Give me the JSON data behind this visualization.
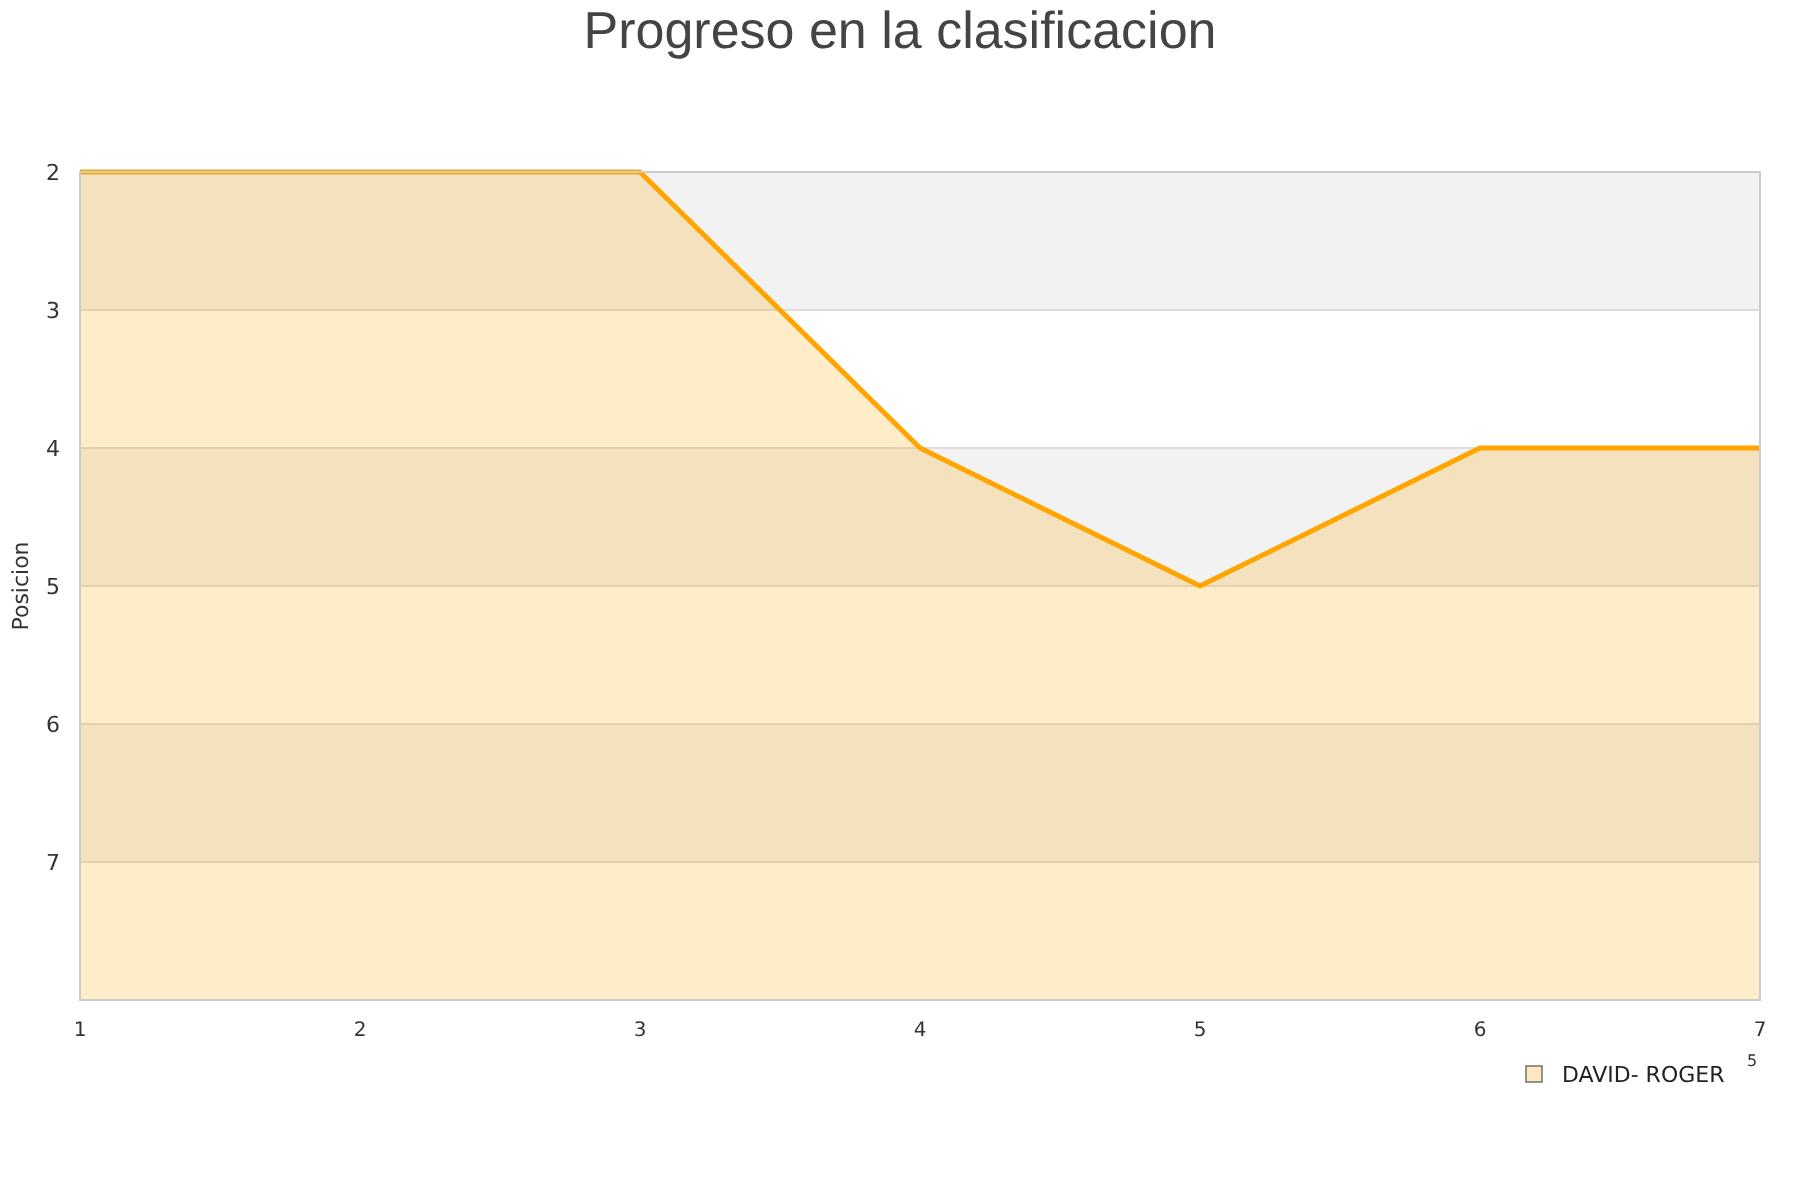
{
  "chart_data": {
    "type": "line",
    "title": "Progreso en la clasificacion",
    "ylabel": "Posicion",
    "x": [
      1,
      2,
      3,
      4,
      5,
      6,
      7
    ],
    "series": [
      {
        "name": "DAVID- ROGER",
        "color": "#ffa500",
        "values": [
          2,
          2,
          2,
          4,
          5,
          4,
          4
        ],
        "lower": [
          2,
          2,
          2,
          4,
          5,
          4,
          4
        ],
        "upper": [
          8,
          8,
          8,
          8,
          8,
          8,
          8
        ]
      }
    ],
    "xlim": [
      1,
      7
    ],
    "xticks": [
      1,
      2,
      3,
      4,
      5,
      6,
      7
    ],
    "ylim": [
      8,
      2
    ],
    "yticks": [
      2,
      3,
      4,
      5,
      6,
      7
    ],
    "grid": "y",
    "legend": "bottom right",
    "annotations": [
      "5"
    ]
  }
}
